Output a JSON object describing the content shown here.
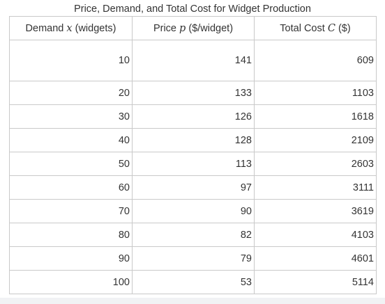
{
  "table": {
    "caption": "Price, Demand, and Total Cost for Widget Production",
    "headers": [
      {
        "before": "Demand",
        "symbol": "x",
        "after": "(widgets)"
      },
      {
        "before": "Price",
        "symbol": "p",
        "after": "($/widget)"
      },
      {
        "before": "Total Cost",
        "symbol": "C",
        "after": "($)"
      }
    ],
    "rows": [
      {
        "demand": "10",
        "price": "141",
        "cost": "609"
      },
      {
        "demand": "20",
        "price": "133",
        "cost": "1103"
      },
      {
        "demand": "30",
        "price": "126",
        "cost": "1618"
      },
      {
        "demand": "40",
        "price": "128",
        "cost": "2109"
      },
      {
        "demand": "50",
        "price": "113",
        "cost": "2603"
      },
      {
        "demand": "60",
        "price": "97",
        "cost": "3111"
      },
      {
        "demand": "70",
        "price": "90",
        "cost": "3619"
      },
      {
        "demand": "80",
        "price": "82",
        "cost": "4103"
      },
      {
        "demand": "90",
        "price": "79",
        "cost": "4601"
      },
      {
        "demand": "100",
        "price": "53",
        "cost": "5114"
      }
    ]
  }
}
